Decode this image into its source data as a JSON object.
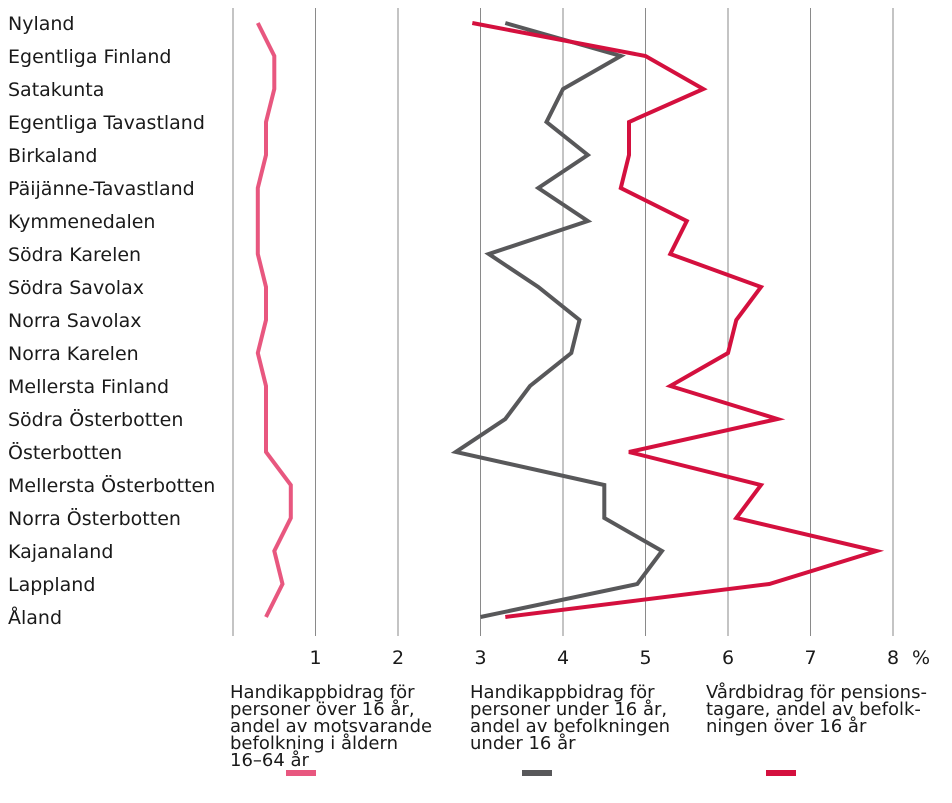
{
  "chart_data": {
    "type": "line",
    "orientation": "vertical-categories",
    "categories": [
      "Nyland",
      "Egentliga Finland",
      "Satakunta",
      "Egentliga Tavastland",
      "Birkaland",
      "Päijänne-Tavastland",
      "Kymmenedalen",
      "Södra Karelen",
      "Södra Savolax",
      "Norra Savolax",
      "Norra Karelen",
      "Mellersta Finland",
      "Södra Österbotten",
      "Österbotten",
      "Mellersta Österbotten",
      "Norra Österbotten",
      "Kajanaland",
      "Lappland",
      "Åland"
    ],
    "x_ticks": [
      "1",
      "2",
      "3",
      "4",
      "5",
      "6",
      "7",
      "8"
    ],
    "x_unit": "%",
    "xlim": [
      0,
      8.4
    ],
    "grid": true,
    "series": [
      {
        "name": "Handikappbidrag för personer över 16 år, andel av motsvarande befolkning i åldern 16–64 år",
        "color": "#e8577f",
        "values": [
          0.3,
          0.5,
          0.5,
          0.4,
          0.4,
          0.3,
          0.3,
          0.3,
          0.4,
          0.4,
          0.3,
          0.4,
          0.4,
          0.4,
          0.7,
          0.7,
          0.5,
          0.6,
          0.4
        ]
      },
      {
        "name": "Handikappbidrag för personer under 16 år, andel av befolkningen under 16 år",
        "color": "#58585a",
        "values": [
          3.3,
          4.7,
          4.0,
          3.8,
          4.3,
          3.7,
          4.3,
          3.1,
          3.7,
          4.2,
          4.1,
          3.6,
          3.3,
          2.7,
          4.5,
          4.5,
          5.2,
          4.9,
          3.0
        ]
      },
      {
        "name": "Vårdbidrag för pensionstagare, andel av befolkningen över 16 år",
        "color": "#d4103e",
        "values": [
          2.9,
          5.0,
          5.7,
          4.8,
          4.8,
          4.7,
          5.5,
          5.3,
          6.4,
          6.1,
          6.0,
          5.3,
          6.6,
          4.8,
          6.4,
          6.1,
          7.8,
          6.5,
          3.3
        ]
      }
    ]
  },
  "legend": [
    {
      "text": "Handikappbidrag för\npersoner över 16 år,\nandel av motsvarande\nbefolkning i åldern\n16–64 år"
    },
    {
      "text": "Handikappbidrag för\npersoner under 16 år,\nandel av befolkningen\nunder 16 år"
    },
    {
      "text": "Vårdbidrag för pensions-\ntagare, andel av befolk-\nningen över 16 år"
    }
  ]
}
